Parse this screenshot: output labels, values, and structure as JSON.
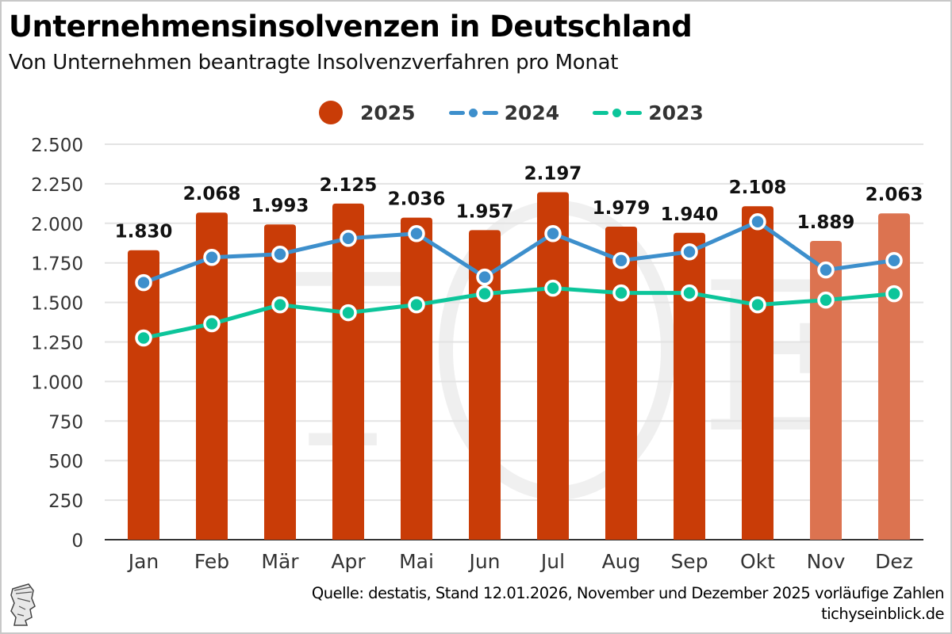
{
  "title": "Unternehmensinsolvenzen in Deutschland",
  "subtitle": "Von Unternehmen beantragte Insolvenzverfahren pro Monat",
  "legend": [
    {
      "label": "2025",
      "type": "bar",
      "color": "#c93c07"
    },
    {
      "label": "2024",
      "type": "line",
      "color": "#3d8fcc"
    },
    {
      "label": "2023",
      "type": "line",
      "color": "#0cc59a"
    }
  ],
  "source": "Quelle: destatis, Stand 12.01.2026, November und Dezember 2025 vorläufige Zahlen",
  "website": "tichyseinblick.de",
  "logo_icon": "antique-head-logo-icon",
  "colors": {
    "bar": "#c93c07",
    "bar_preliminary": "#dc7350",
    "line_2024": "#3d8fcc",
    "line_2023": "#0cc59a",
    "grid": "#e3e3e3",
    "text": "#333333"
  },
  "chart_data": {
    "type": "bar",
    "title": "Unternehmensinsolvenzen in Deutschland",
    "subtitle": "Von Unternehmen beantragte Insolvenzverfahren pro Monat",
    "xlabel": "",
    "ylabel": "",
    "categories": [
      "Jan",
      "Feb",
      "Mär",
      "Apr",
      "Mai",
      "Jun",
      "Jul",
      "Aug",
      "Sep",
      "Okt",
      "Nov",
      "Dez"
    ],
    "ylim": [
      0,
      2500
    ],
    "yticks": [
      0,
      250,
      500,
      750,
      1000,
      1250,
      1500,
      1750,
      2000,
      2250,
      2500
    ],
    "ytick_labels": [
      "0",
      "250",
      "500",
      "750",
      "1.000",
      "1.250",
      "1.500",
      "1.750",
      "2.000",
      "2.250",
      "2.500"
    ],
    "grid": true,
    "legend_position": "top-center",
    "series": [
      {
        "name": "2025",
        "type": "bar",
        "values": [
          1830,
          2068,
          1993,
          2125,
          2036,
          1957,
          2197,
          1979,
          1940,
          2108,
          1889,
          2063
        ],
        "labels": [
          "1.830",
          "2.068",
          "1.993",
          "2.125",
          "2.036",
          "1.957",
          "2.197",
          "1.979",
          "1.940",
          "2.108",
          "1.889",
          "2.063"
        ],
        "preliminary": [
          false,
          false,
          false,
          false,
          false,
          false,
          false,
          false,
          false,
          false,
          true,
          true
        ]
      },
      {
        "name": "2024",
        "type": "line",
        "values": [
          1625,
          1785,
          1805,
          1905,
          1935,
          1660,
          1935,
          1765,
          1820,
          2010,
          1705,
          1765
        ]
      },
      {
        "name": "2023",
        "type": "line",
        "values": [
          1275,
          1365,
          1485,
          1435,
          1485,
          1555,
          1590,
          1560,
          1560,
          1485,
          1515,
          1555
        ]
      }
    ],
    "annotations": [
      "November und Dezember 2025 vorläufige Zahlen"
    ]
  }
}
